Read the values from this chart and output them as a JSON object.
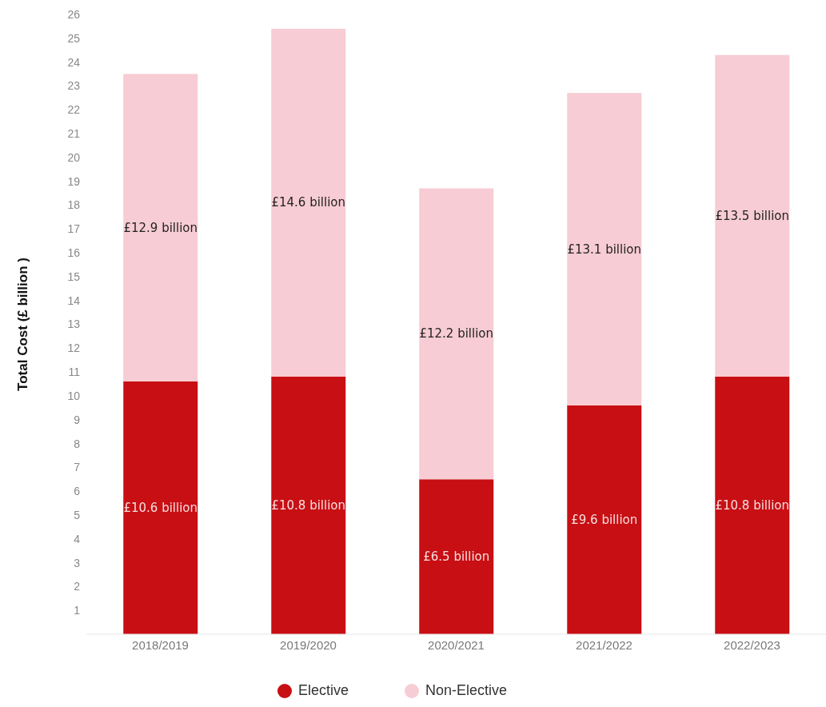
{
  "chart_data": {
    "type": "bar",
    "stacked": true,
    "ylabel": "Total Cost (£ billion )",
    "categories": [
      "2018/2019",
      "2019/2020",
      "2020/2021",
      "2021/2022",
      "2022/2023"
    ],
    "series": [
      {
        "name": "Elective",
        "color": "#c80f14",
        "values": [
          10.6,
          10.8,
          6.5,
          9.6,
          10.8
        ],
        "value_labels": [
          "£10.6 billion",
          "£10.8 billion",
          "£6.5 billion",
          "£9.6 billion",
          "£10.8 billion"
        ]
      },
      {
        "name": "Non-Elective",
        "color": "#f7ccd4",
        "values": [
          12.9,
          14.6,
          12.2,
          13.1,
          13.5
        ],
        "value_labels": [
          "£12.9 billion",
          "£14.6 billion",
          "£12.2 billion",
          "£13.1 billion",
          "£13.5 billion"
        ]
      }
    ],
    "ylim": [
      0,
      26
    ],
    "yticks": [
      1,
      2,
      3,
      4,
      5,
      6,
      7,
      8,
      9,
      10,
      11,
      12,
      13,
      14,
      15,
      16,
      17,
      18,
      19,
      20,
      21,
      22,
      23,
      24,
      25,
      26
    ],
    "grid": false,
    "legend": "bottom"
  }
}
